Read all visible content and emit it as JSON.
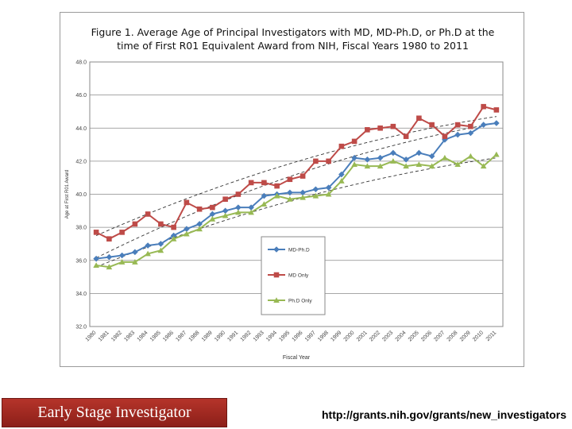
{
  "chart_data": {
    "type": "line",
    "title_line1": "Figure 1.   Average Age of Principal Investigators with MD, MD-Ph.D, or Ph.D at the",
    "title_line2": "time of First R01 Equivalent Award from NIH, Fiscal Years 1980 to 2011",
    "xlabel": "Fiscal Year",
    "ylabel": "Age at First R01 Award",
    "ylim": [
      32.0,
      48.0
    ],
    "yticks": [
      "32.0",
      "34.0",
      "36.0",
      "38.0",
      "40.0",
      "42.0",
      "44.0",
      "46.0",
      "48.0"
    ],
    "categories": [
      "1980",
      "1981",
      "1982",
      "1983",
      "1984",
      "1985",
      "1986",
      "1987",
      "1988",
      "1989",
      "1990",
      "1991",
      "1992",
      "1993",
      "1994",
      "1995",
      "1996",
      "1997",
      "1998",
      "1999",
      "2000",
      "2001",
      "2002",
      "2003",
      "2004",
      "2005",
      "2006",
      "2007",
      "2008",
      "2009",
      "2010",
      "2011"
    ],
    "legend_position": "right",
    "series": [
      {
        "name": "MD-Ph.D",
        "color": "#4a7ebb",
        "marker": "diamond",
        "values": [
          36.1,
          36.2,
          36.3,
          36.5,
          36.9,
          37.0,
          37.5,
          37.9,
          38.2,
          38.8,
          39.0,
          39.2,
          39.2,
          39.9,
          40.0,
          40.1,
          40.1,
          40.3,
          40.4,
          41.2,
          42.2,
          42.1,
          42.2,
          42.5,
          42.1,
          42.5,
          42.3,
          43.3,
          43.6,
          43.7,
          44.2,
          44.3
        ]
      },
      {
        "name": "MD Only",
        "color": "#be4b48",
        "marker": "square",
        "values": [
          37.7,
          37.3,
          37.7,
          38.2,
          38.8,
          38.2,
          38.0,
          39.5,
          39.1,
          39.2,
          39.7,
          40.0,
          40.7,
          40.7,
          40.5,
          40.9,
          41.1,
          42.0,
          42.0,
          42.9,
          43.2,
          43.9,
          44.0,
          44.1,
          43.5,
          44.6,
          44.2,
          43.5,
          44.2,
          44.1,
          45.3,
          45.1
        ]
      },
      {
        "name": "Ph.D Only",
        "color": "#98b954",
        "marker": "triangle",
        "values": [
          35.7,
          35.6,
          35.9,
          35.9,
          36.4,
          36.6,
          37.3,
          37.6,
          37.9,
          38.5,
          38.7,
          38.9,
          38.9,
          39.4,
          39.9,
          39.7,
          39.8,
          39.9,
          40.0,
          40.8,
          41.8,
          41.7,
          41.7,
          42.0,
          41.7,
          41.8,
          41.7,
          42.2,
          41.8,
          42.3,
          41.7,
          42.4
        ]
      }
    ],
    "trendlines": [
      {
        "series": "MD-Ph.D",
        "style": "dashed",
        "values": [
          36.15,
          44.3
        ]
      },
      {
        "series": "MD Only",
        "style": "dashed",
        "values": [
          37.5,
          44.7
        ]
      },
      {
        "series": "Ph.D Only",
        "style": "dashed",
        "values": [
          35.6,
          42.2
        ]
      }
    ]
  },
  "footer": {
    "left_label": "Early Stage Investigator",
    "url": "http://grants.nih.gov/grants/new_investigators"
  }
}
